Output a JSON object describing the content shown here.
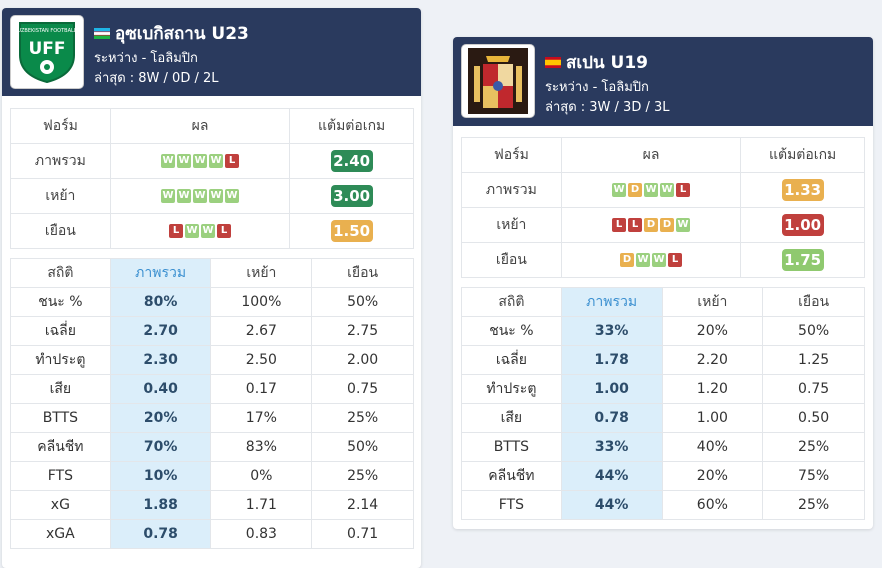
{
  "teams": [
    {
      "name": "อุซเบกิสถาน U23",
      "logo_text": "UFF",
      "logo_color": "#0a8a4a",
      "flag": "uzbekistan-flag",
      "competition": "ระหว่าง - โอลิมปิก",
      "recent": "ล่าสุด : 8W / 0D / 2L",
      "form_headers": [
        "ฟอร์ม",
        "ผล",
        "แต้มต่อเกม"
      ],
      "form_rows": [
        {
          "label": "ภาพรวม",
          "results": [
            "W",
            "W",
            "W",
            "W",
            "L"
          ],
          "ppg": "2.40",
          "ppg_color": "green"
        },
        {
          "label": "เหย้า",
          "results": [
            "W",
            "W",
            "W",
            "W",
            "W"
          ],
          "ppg": "3.00",
          "ppg_color": "green"
        },
        {
          "label": "เยือน",
          "results": [
            "L",
            "W",
            "W",
            "L"
          ],
          "ppg": "1.50",
          "ppg_color": "orange"
        }
      ],
      "stat_headers": [
        "สถิติ",
        "ภาพรวม",
        "เหย้า",
        "เยือน"
      ],
      "stat_rows": [
        {
          "label": "ชนะ %",
          "overall": "80%",
          "home": "100%",
          "away": "50%"
        },
        {
          "label": "เฉลี่ย",
          "overall": "2.70",
          "home": "2.67",
          "away": "2.75"
        },
        {
          "label": "ทำประตู",
          "overall": "2.30",
          "home": "2.50",
          "away": "2.00"
        },
        {
          "label": "เสีย",
          "overall": "0.40",
          "home": "0.17",
          "away": "0.75"
        },
        {
          "label": "BTTS",
          "overall": "20%",
          "home": "17%",
          "away": "25%"
        },
        {
          "label": "คลีนชีท",
          "overall": "70%",
          "home": "83%",
          "away": "50%"
        },
        {
          "label": "FTS",
          "overall": "10%",
          "home": "0%",
          "away": "25%"
        },
        {
          "label": "xG",
          "overall": "1.88",
          "home": "1.71",
          "away": "2.14"
        },
        {
          "label": "xGA",
          "overall": "0.78",
          "home": "0.83",
          "away": "0.71"
        }
      ]
    },
    {
      "name": "สเปน U19",
      "logo_text": "",
      "logo_color": "#c0282d",
      "flag": "spain-flag",
      "competition": "ระหว่าง - โอลิมปิก",
      "recent": "ล่าสุด : 3W / 3D / 3L",
      "form_headers": [
        "ฟอร์ม",
        "ผล",
        "แต้มต่อเกม"
      ],
      "form_rows": [
        {
          "label": "ภาพรวม",
          "results": [
            "W",
            "D",
            "W",
            "W",
            "L"
          ],
          "ppg": "1.33",
          "ppg_color": "orange"
        },
        {
          "label": "เหย้า",
          "results": [
            "L",
            "L",
            "D",
            "D",
            "W"
          ],
          "ppg": "1.00",
          "ppg_color": "red"
        },
        {
          "label": "เยือน",
          "results": [
            "D",
            "W",
            "W",
            "L"
          ],
          "ppg": "1.75",
          "ppg_color": "light"
        }
      ],
      "stat_headers": [
        "สถิติ",
        "ภาพรวม",
        "เหย้า",
        "เยือน"
      ],
      "stat_rows": [
        {
          "label": "ชนะ %",
          "overall": "33%",
          "home": "20%",
          "away": "50%"
        },
        {
          "label": "เฉลี่ย",
          "overall": "1.78",
          "home": "2.20",
          "away": "1.25"
        },
        {
          "label": "ทำประตู",
          "overall": "1.00",
          "home": "1.20",
          "away": "0.75"
        },
        {
          "label": "เสีย",
          "overall": "0.78",
          "home": "1.00",
          "away": "0.50"
        },
        {
          "label": "BTTS",
          "overall": "33%",
          "home": "40%",
          "away": "25%"
        },
        {
          "label": "คลีนชีท",
          "overall": "44%",
          "home": "20%",
          "away": "75%"
        },
        {
          "label": "FTS",
          "overall": "44%",
          "home": "60%",
          "away": "25%"
        }
      ]
    }
  ]
}
